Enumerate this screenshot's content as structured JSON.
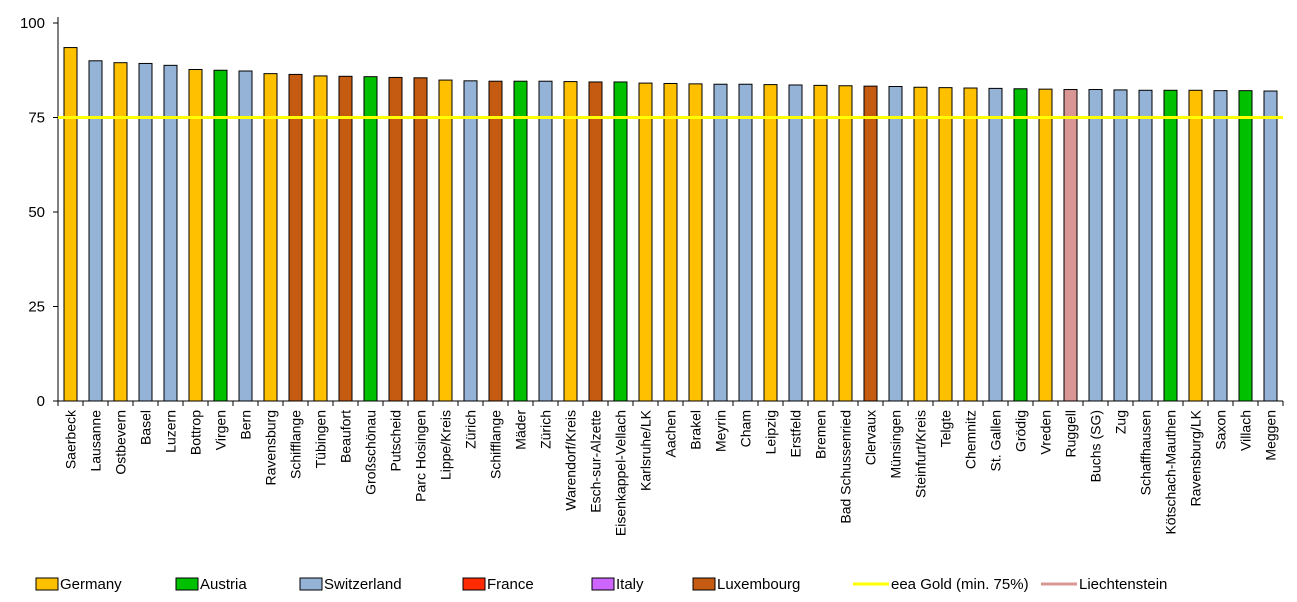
{
  "chart_data": {
    "type": "bar",
    "title": "",
    "xlabel": "",
    "ylabel": "",
    "ylim": [
      0,
      100
    ],
    "yticks": [
      0,
      25,
      50,
      75,
      100
    ],
    "grid": false,
    "legend_position": "bottom",
    "threshold": {
      "label": "eea Gold (min. 75%)",
      "value": 75,
      "color": "#FFFF00"
    },
    "countries": [
      {
        "name": "Germany",
        "color": "#FFC000"
      },
      {
        "name": "Austria",
        "color": "#00C000"
      },
      {
        "name": "Switzerland",
        "color": "#95B3D7"
      },
      {
        "name": "France",
        "color": "#FF2A00"
      },
      {
        "name": "Italy",
        "color": "#CC66FF"
      },
      {
        "name": "Luxembourg",
        "color": "#C55A11"
      },
      {
        "name": "Liechtenstein",
        "color": "#DA9694"
      }
    ],
    "legend": [
      {
        "label": "Germany",
        "kind": "box",
        "color": "#FFC000"
      },
      {
        "label": "Austria",
        "kind": "box",
        "color": "#00C000"
      },
      {
        "label": "Switzerland",
        "kind": "box",
        "color": "#95B3D7"
      },
      {
        "label": "France",
        "kind": "box",
        "color": "#FF2A00"
      },
      {
        "label": "Italy",
        "kind": "box",
        "color": "#CC66FF"
      },
      {
        "label": "Luxembourg",
        "kind": "box",
        "color": "#C55A11"
      },
      {
        "label": "eea Gold (min. 75%)",
        "kind": "line",
        "color": "#FFFF00"
      },
      {
        "label": "Liechtenstein",
        "kind": "line",
        "color": "#DA9694"
      }
    ],
    "bars": [
      {
        "label": "Saerbeck",
        "value": 93.5,
        "country": "Germany"
      },
      {
        "label": "Lausanne",
        "value": 90.0,
        "country": "Switzerland"
      },
      {
        "label": "Ostbevern",
        "value": 89.5,
        "country": "Germany"
      },
      {
        "label": "Basel",
        "value": 89.3,
        "country": "Switzerland"
      },
      {
        "label": "Luzern",
        "value": 88.8,
        "country": "Switzerland"
      },
      {
        "label": "Bottrop",
        "value": 87.7,
        "country": "Germany"
      },
      {
        "label": "Virgen",
        "value": 87.5,
        "country": "Austria"
      },
      {
        "label": "Bern",
        "value": 87.3,
        "country": "Switzerland"
      },
      {
        "label": "Ravensburg",
        "value": 86.6,
        "country": "Germany"
      },
      {
        "label": "Schifflange",
        "value": 86.4,
        "country": "Luxembourg"
      },
      {
        "label": "Tübingen",
        "value": 86.0,
        "country": "Germany"
      },
      {
        "label": "Beaufort",
        "value": 85.9,
        "country": "Luxembourg"
      },
      {
        "label": "Großschönau",
        "value": 85.8,
        "country": "Austria"
      },
      {
        "label": "Putscheid",
        "value": 85.6,
        "country": "Luxembourg"
      },
      {
        "label": "Parc Hosingen",
        "value": 85.5,
        "country": "Luxembourg"
      },
      {
        "label": "Lippe/Kreis",
        "value": 84.9,
        "country": "Germany"
      },
      {
        "label": "Zürich",
        "value": 84.7,
        "country": "Switzerland"
      },
      {
        "label": "Schifflange",
        "value": 84.6,
        "country": "Luxembourg"
      },
      {
        "label": "Mäder",
        "value": 84.6,
        "country": "Austria"
      },
      {
        "label": "Zürich",
        "value": 84.6,
        "country": "Switzerland"
      },
      {
        "label": "Warendorf/Kreis",
        "value": 84.5,
        "country": "Germany"
      },
      {
        "label": "Esch-sur-Alzette",
        "value": 84.4,
        "country": "Luxembourg"
      },
      {
        "label": "Eisenkappel-Vellach",
        "value": 84.4,
        "country": "Austria"
      },
      {
        "label": "Karlsruhe/LK",
        "value": 84.1,
        "country": "Germany"
      },
      {
        "label": "Aachen",
        "value": 84.0,
        "country": "Germany"
      },
      {
        "label": "Brakel",
        "value": 83.9,
        "country": "Germany"
      },
      {
        "label": "Meyrin",
        "value": 83.8,
        "country": "Switzerland"
      },
      {
        "label": "Cham",
        "value": 83.8,
        "country": "Switzerland"
      },
      {
        "label": "Leipzig",
        "value": 83.7,
        "country": "Germany"
      },
      {
        "label": "Erstfeld",
        "value": 83.6,
        "country": "Switzerland"
      },
      {
        "label": "Bremen",
        "value": 83.5,
        "country": "Germany"
      },
      {
        "label": "Bad Schussenried",
        "value": 83.4,
        "country": "Germany"
      },
      {
        "label": "Clervaux",
        "value": 83.3,
        "country": "Luxembourg"
      },
      {
        "label": "Münsingen",
        "value": 83.2,
        "country": "Switzerland"
      },
      {
        "label": "Steinfurt/Kreis",
        "value": 83.0,
        "country": "Germany"
      },
      {
        "label": "Telgte",
        "value": 82.9,
        "country": "Germany"
      },
      {
        "label": "Chemnitz",
        "value": 82.8,
        "country": "Germany"
      },
      {
        "label": "St. Gallen",
        "value": 82.7,
        "country": "Switzerland"
      },
      {
        "label": "Grödig",
        "value": 82.6,
        "country": "Austria"
      },
      {
        "label": "Vreden",
        "value": 82.5,
        "country": "Germany"
      },
      {
        "label": "Ruggell",
        "value": 82.4,
        "country": "Liechtenstein"
      },
      {
        "label": "Buchs (SG)",
        "value": 82.4,
        "country": "Switzerland"
      },
      {
        "label": "Zug",
        "value": 82.3,
        "country": "Switzerland"
      },
      {
        "label": "Schaffhausen",
        "value": 82.2,
        "country": "Switzerland"
      },
      {
        "label": "Kötschach-Mauthen",
        "value": 82.2,
        "country": "Austria"
      },
      {
        "label": "Ravensburg/LK",
        "value": 82.2,
        "country": "Germany"
      },
      {
        "label": "Saxon",
        "value": 82.1,
        "country": "Switzerland"
      },
      {
        "label": "Villach",
        "value": 82.1,
        "country": "Austria"
      },
      {
        "label": "Meggen",
        "value": 82.0,
        "country": "Switzerland"
      }
    ]
  }
}
